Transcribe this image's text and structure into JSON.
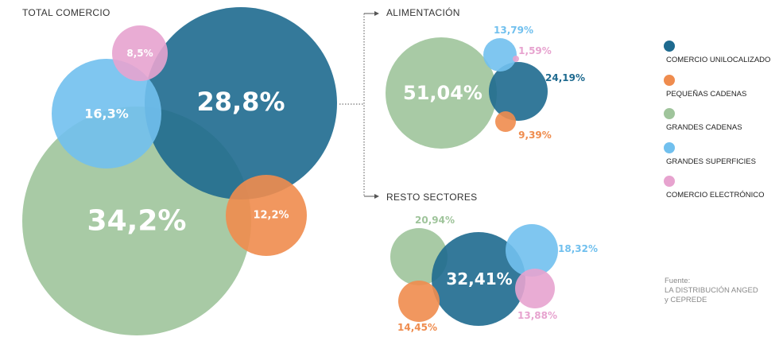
{
  "colors": {
    "COMERCIO UNILOCALIZADO": "#1e6a8f",
    "PEQUEÑAS CADENAS": "#ef8c4e",
    "GRANDES CADENAS": "#9fc49b",
    "GRANDES SUPERFICIES": "#71c0ee",
    "COMERCIO ELECTRÓNICO": "#e7a3cf"
  },
  "legend": {
    "items": [
      "COMERCIO UNILOCALIZADO",
      "PEQUEÑAS CADENAS",
      "GRANDES CADENAS",
      "GRANDES SUPERFICIES",
      "COMERCIO ELECTRÓNICO"
    ]
  },
  "source": {
    "line1": "Fuente:",
    "line2": "LA DISTRIBUCIÓN ANGED",
    "line3": "y CEPREDE"
  },
  "chart_data": [
    {
      "type": "bubble",
      "title": "TOTAL COMERCIO",
      "series": [
        {
          "name": "GRANDES CADENAS",
          "value": 34.2,
          "label": "34,2%"
        },
        {
          "name": "COMERCIO UNILOCALIZADO",
          "value": 28.8,
          "label": "28,8%"
        },
        {
          "name": "GRANDES SUPERFICIES",
          "value": 16.3,
          "label": "16,3%"
        },
        {
          "name": "PEQUEÑAS CADENAS",
          "value": 12.2,
          "label": "12,2%"
        },
        {
          "name": "COMERCIO ELECTRÓNICO",
          "value": 8.5,
          "label": "8,5%"
        }
      ]
    },
    {
      "type": "bubble",
      "title": "ALIMENTACIÓN",
      "series": [
        {
          "name": "GRANDES CADENAS",
          "value": 51.04,
          "label": "51,04%"
        },
        {
          "name": "COMERCIO UNILOCALIZADO",
          "value": 24.19,
          "label": "24,19%"
        },
        {
          "name": "GRANDES SUPERFICIES",
          "value": 13.79,
          "label": "13,79%"
        },
        {
          "name": "PEQUEÑAS CADENAS",
          "value": 9.39,
          "label": "9,39%"
        },
        {
          "name": "COMERCIO ELECTRÓNICO",
          "value": 1.59,
          "label": "1,59%"
        }
      ]
    },
    {
      "type": "bubble",
      "title": "RESTO SECTORES",
      "series": [
        {
          "name": "COMERCIO UNILOCALIZADO",
          "value": 32.41,
          "label": "32,41%"
        },
        {
          "name": "GRANDES CADENAS",
          "value": 20.94,
          "label": "20,94%"
        },
        {
          "name": "GRANDES SUPERFICIES",
          "value": 18.32,
          "label": "18,32%"
        },
        {
          "name": "PEQUEÑAS CADENAS",
          "value": 14.45,
          "label": "14,45%"
        },
        {
          "name": "COMERCIO ELECTRÓNICO",
          "value": 13.88,
          "label": "13,88%"
        }
      ]
    }
  ]
}
